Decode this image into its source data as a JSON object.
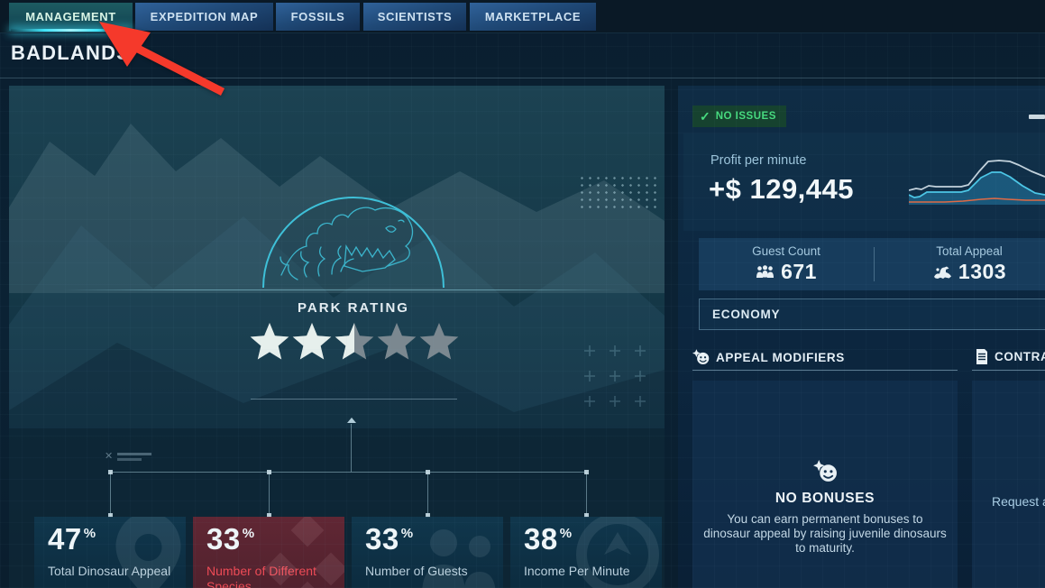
{
  "page_title": "BADLANDS",
  "tabs": [
    {
      "label": "MANAGEMENT",
      "active": true
    },
    {
      "label": "EXPEDITION MAP",
      "active": false
    },
    {
      "label": "FOSSILS",
      "active": false
    },
    {
      "label": "SCIENTISTS",
      "active": false
    },
    {
      "label": "MARKETPLACE",
      "active": false
    }
  ],
  "park": {
    "rating_label": "PARK RATING",
    "stars_total": 5,
    "stars_filled": 2.5,
    "metrics": [
      {
        "value": "47",
        "unit": "%",
        "label": "Total Dinosaur Appeal",
        "alert": false,
        "icon": "map-pin"
      },
      {
        "value": "33",
        "unit": "%",
        "label": "Number of Different Species",
        "alert": true,
        "icon": "species-diamonds"
      },
      {
        "value": "33",
        "unit": "%",
        "label": "Number of Guests",
        "alert": false,
        "icon": "guests-people"
      },
      {
        "value": "38",
        "unit": "%",
        "label": "Income Per Minute",
        "alert": false,
        "icon": "income-gauge"
      }
    ]
  },
  "status_badge": {
    "label": "NO ISSUES",
    "icon": "checkmark",
    "color": "#47da7f"
  },
  "profit": {
    "label": "Profit per minute",
    "value": "+$ 129,445"
  },
  "counters": {
    "guest": {
      "label": "Guest Count",
      "value": "671",
      "icon": "guests-group"
    },
    "appeal": {
      "label": "Total Appeal",
      "value": "1303",
      "icon": "dinosaur"
    }
  },
  "economy_section": {
    "label": "ECONOMY"
  },
  "appeal_modifiers": {
    "header": "APPEAL MODIFIERS",
    "header_icon": "star-smiley",
    "empty_title": "NO BONUSES",
    "empty_body": "You can earn permanent bonuses to dinosaur appeal by raising juvenile dinosaurs to maturity."
  },
  "contracts": {
    "header": "CONTRA",
    "header_icon": "document",
    "request_label": "Request a"
  },
  "annotation": {
    "type": "red-arrow",
    "color": "#f5392b",
    "points_at": "MANAGEMENT tab"
  },
  "chart_data": {
    "type": "area",
    "title": "Profit per minute sparkline (no axes or tick labels visible)",
    "axes_visible": false,
    "legend": "none",
    "series": [
      {
        "name": "upper-line",
        "color": "#c3d2dc",
        "points": [
          [
            0,
            51
          ],
          [
            8,
            49
          ],
          [
            14,
            50
          ],
          [
            22,
            46
          ],
          [
            30,
            47
          ],
          [
            44,
            47
          ],
          [
            58,
            47
          ],
          [
            66,
            45
          ],
          [
            78,
            30
          ],
          [
            88,
            19
          ],
          [
            100,
            18
          ],
          [
            112,
            19
          ],
          [
            122,
            23
          ],
          [
            136,
            30
          ],
          [
            151,
            36
          ]
        ]
      },
      {
        "name": "filled-area-line",
        "color": "#4cc6e6",
        "fill": "#1c5f82",
        "points": [
          [
            0,
            56
          ],
          [
            6,
            59
          ],
          [
            12,
            58
          ],
          [
            20,
            53
          ],
          [
            32,
            53
          ],
          [
            46,
            53
          ],
          [
            58,
            53
          ],
          [
            66,
            51
          ],
          [
            80,
            37
          ],
          [
            92,
            31
          ],
          [
            102,
            31
          ],
          [
            112,
            36
          ],
          [
            126,
            46
          ],
          [
            140,
            54
          ],
          [
            151,
            56
          ]
        ]
      },
      {
        "name": "baseline-line",
        "color": "#e06a45",
        "points": [
          [
            0,
            64
          ],
          [
            40,
            64
          ],
          [
            60,
            63
          ],
          [
            80,
            61
          ],
          [
            95,
            60
          ],
          [
            110,
            61
          ],
          [
            130,
            62
          ],
          [
            151,
            62
          ]
        ]
      }
    ]
  },
  "colors": {
    "active_tab_glow": "#3fe3f7",
    "alert_red": "#ee4b56",
    "star_filled": "#e6efec",
    "star_empty": "#7b8890",
    "dome_line": "#3ec0d8"
  }
}
